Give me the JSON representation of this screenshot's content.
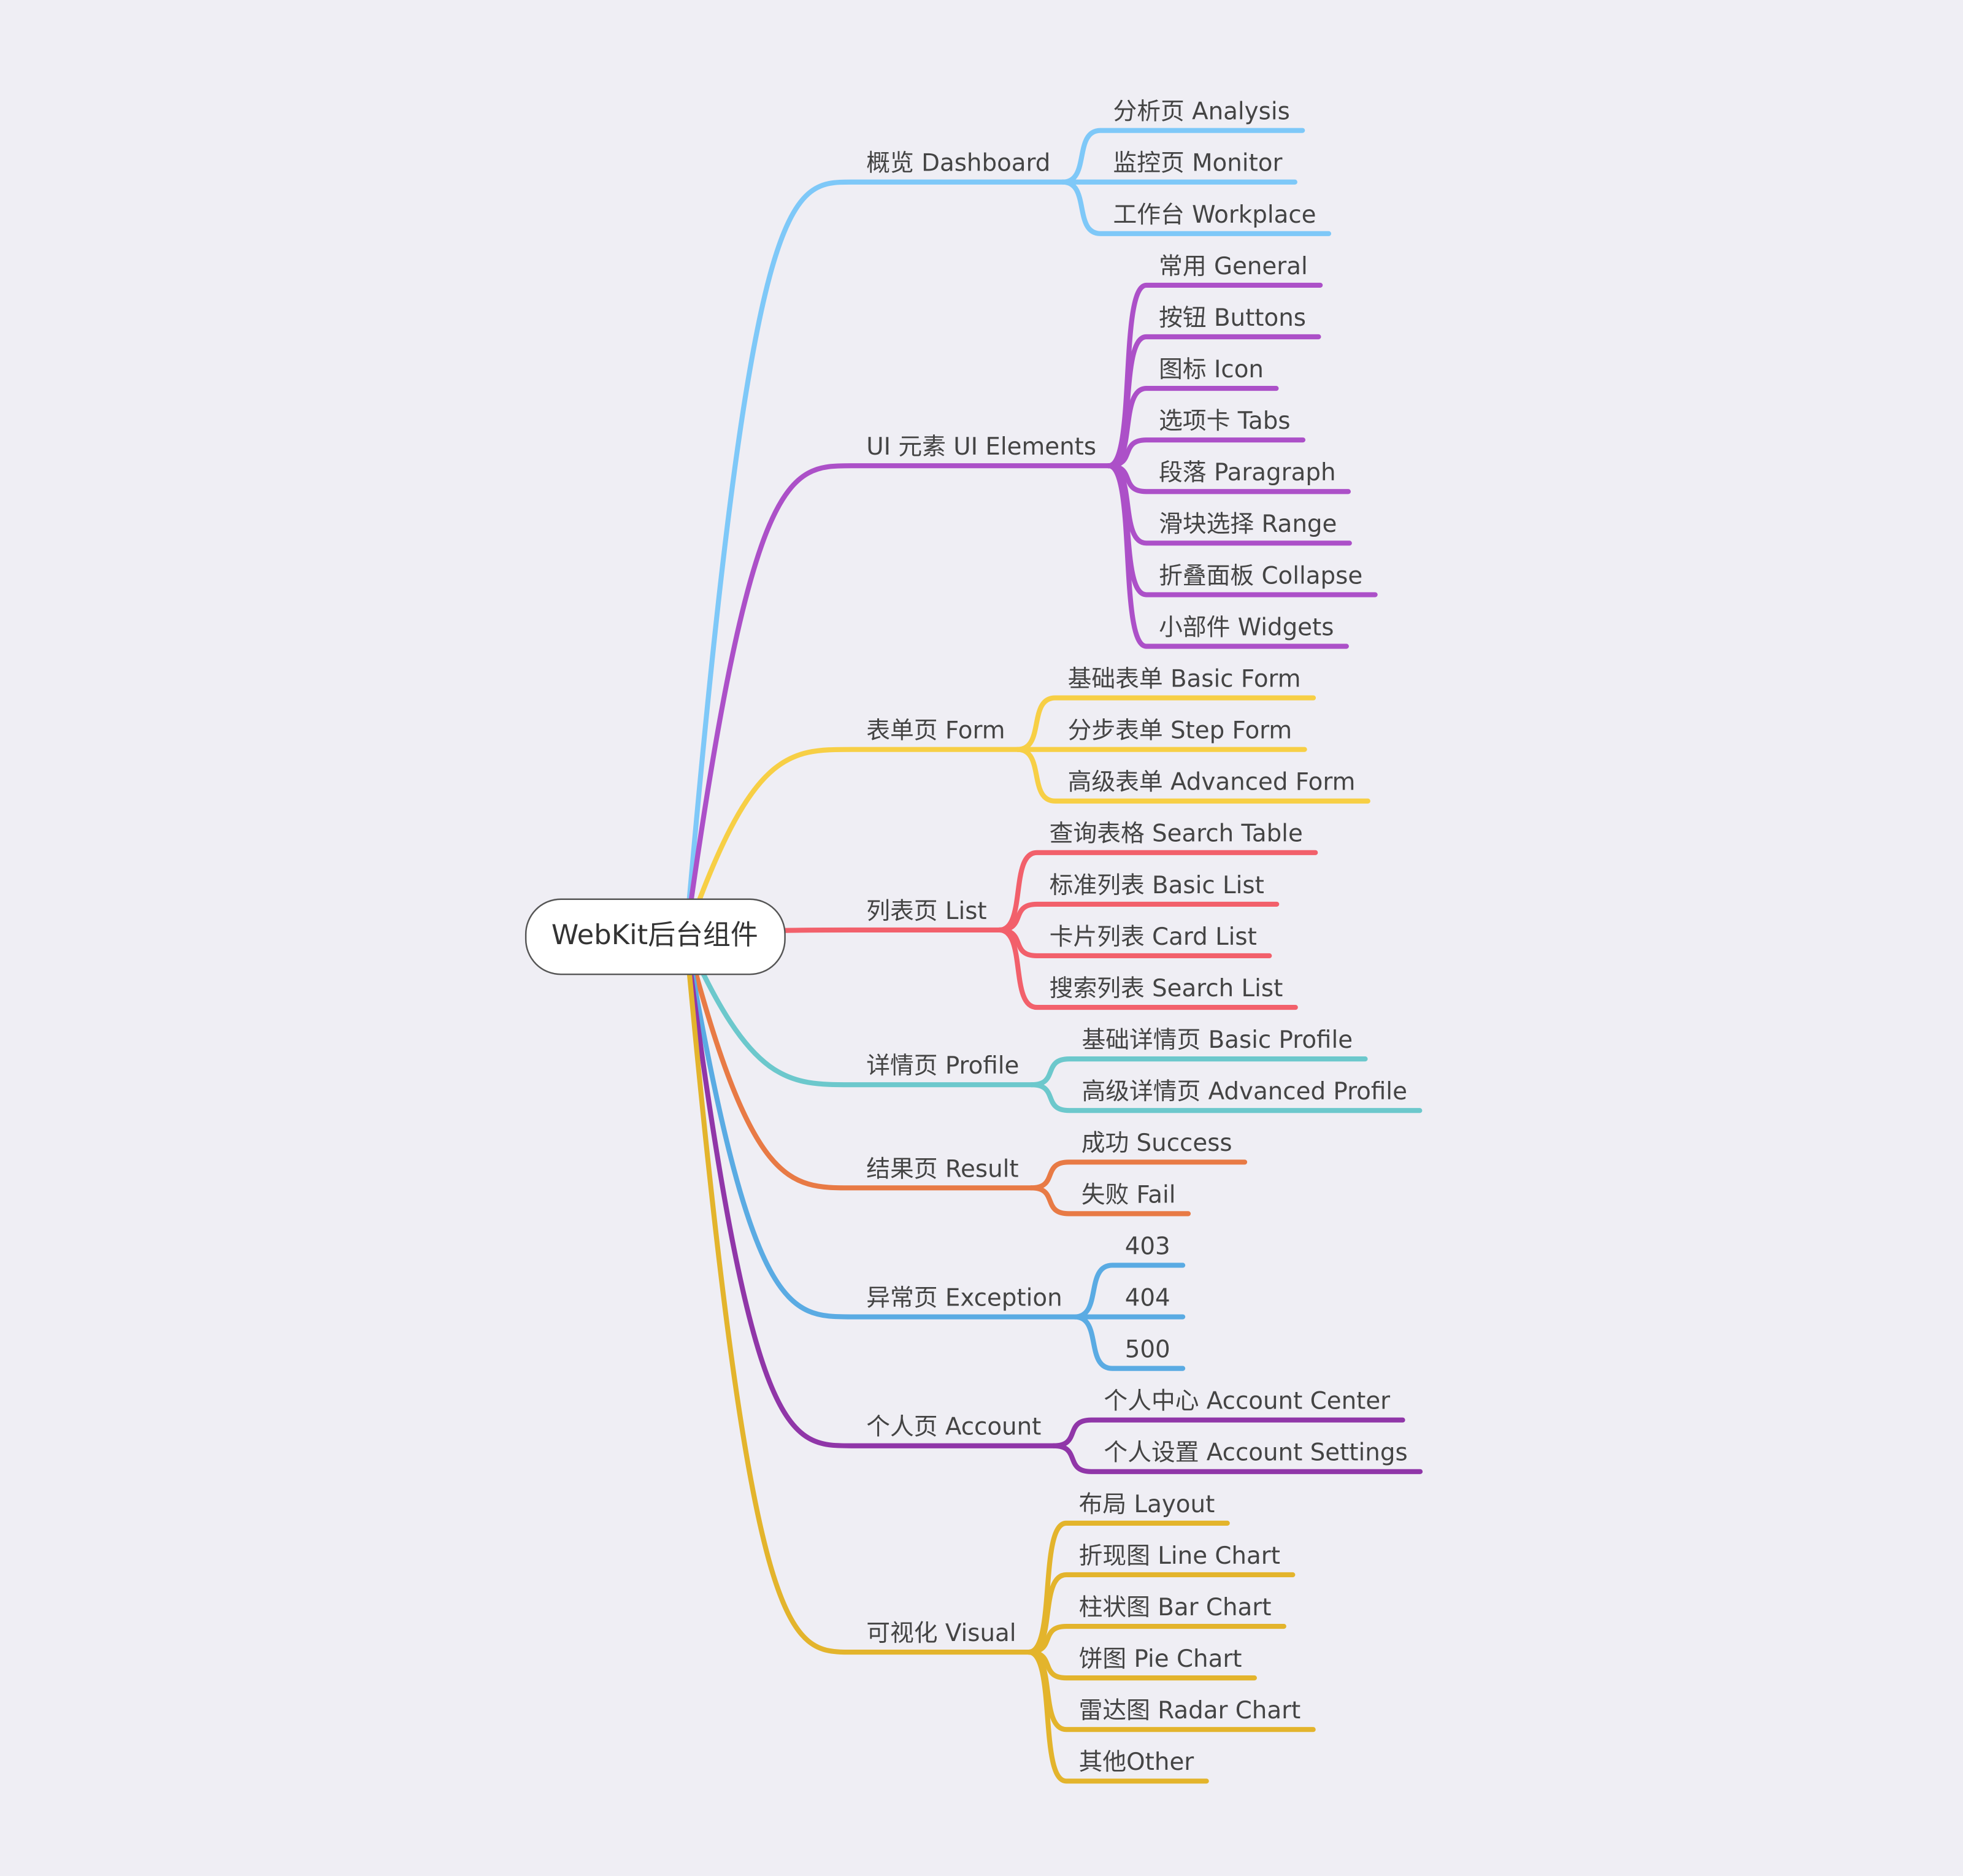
{
  "root": {
    "label": "WebKit后台组件"
  },
  "branches": [
    {
      "label": "概览 Dashboard",
      "color": "#7ec8f8",
      "children": [
        "分析页 Analysis",
        "监控页 Monitor",
        "工作台 Workplace"
      ]
    },
    {
      "label": "UI 元素 UI Elements",
      "color": "#ac50c8",
      "children": [
        "常用 General",
        "按钮 Buttons",
        "图标 Icon",
        "选项卡 Tabs",
        "段落 Paragraph",
        "滑块选择 Range",
        "折叠面板 Collapse",
        "小部件 Widgets"
      ]
    },
    {
      "label": "表单页 Form",
      "color": "#f7cf45",
      "children": [
        "基础表单 Basic Form",
        "分步表单 Step Form",
        "高级表单 Advanced Form"
      ]
    },
    {
      "label": "列表页 List",
      "color": "#f2606b",
      "children": [
        "查询表格 Search Table",
        "标准列表 Basic List",
        "卡片列表 Card List",
        "搜索列表 Search List"
      ]
    },
    {
      "label": "详情页 Profile",
      "color": "#6cc8cc",
      "children": [
        "基础详情页 Basic Profile",
        "高级详情页 Advanced Profile"
      ]
    },
    {
      "label": "结果页 Result",
      "color": "#e87a45",
      "children": [
        "成功 Success",
        "失败 Fail"
      ]
    },
    {
      "label": "异常页 Exception",
      "color": "#5aabe3",
      "children": [
        "403",
        "404",
        "500"
      ]
    },
    {
      "label": "个人页 Account",
      "color": "#9036a8",
      "children": [
        "个人中心 Account Center",
        "个人设置 Account Settings"
      ]
    },
    {
      "label": "可视化 Visual",
      "color": "#e3b42c",
      "children": [
        "布局 Layout",
        "折现图 Line Chart",
        "柱状图 Bar Chart",
        "饼图 Pie Chart",
        "雷达图 Radar Chart",
        "其他Other"
      ]
    }
  ]
}
